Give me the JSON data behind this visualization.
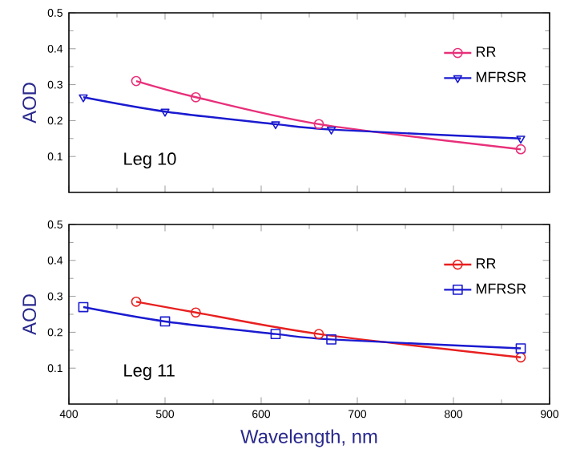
{
  "chart_data": [
    {
      "type": "line",
      "ylabel": "AOD",
      "annotations": [
        "Leg 10"
      ],
      "xlim": [
        400,
        900
      ],
      "xticks": [
        400,
        500,
        600,
        700,
        800,
        900
      ],
      "ylim": [
        0,
        0.5
      ],
      "yticks": [
        0.1,
        0.2,
        0.3,
        0.4,
        0.5
      ],
      "tick_labels": "y",
      "legend": "top right",
      "grid": false,
      "series": [
        {
          "name": "RR",
          "color": "#e8307a",
          "marker": "circle",
          "x": [
            470,
            532,
            660,
            870
          ],
          "values": [
            0.31,
            0.265,
            0.19,
            0.12
          ]
        },
        {
          "name": "MFRSR",
          "color": "#1a1ad0",
          "marker": "triangle",
          "x": [
            415,
            500,
            615,
            673,
            870
          ],
          "values": [
            0.265,
            0.225,
            0.19,
            0.175,
            0.15
          ]
        }
      ]
    },
    {
      "type": "line",
      "ylabel": "AOD",
      "xlabel": "Wavelength, nm",
      "annotations": [
        "Leg 11"
      ],
      "xlim": [
        400,
        900
      ],
      "xticks": [
        400,
        500,
        600,
        700,
        800,
        900
      ],
      "ylim": [
        0,
        0.5
      ],
      "yticks": [
        0.1,
        0.2,
        0.3,
        0.4,
        0.5
      ],
      "legend": "top right",
      "grid": false,
      "series": [
        {
          "name": "RR",
          "color": "#e82020",
          "marker": "circle",
          "x": [
            470,
            532,
            660,
            870
          ],
          "values": [
            0.285,
            0.255,
            0.195,
            0.13
          ]
        },
        {
          "name": "MFRSR",
          "color": "#1a1ad0",
          "marker": "square",
          "x": [
            415,
            500,
            615,
            673,
            870
          ],
          "values": [
            0.27,
            0.23,
            0.195,
            0.18,
            0.155
          ]
        }
      ]
    }
  ]
}
